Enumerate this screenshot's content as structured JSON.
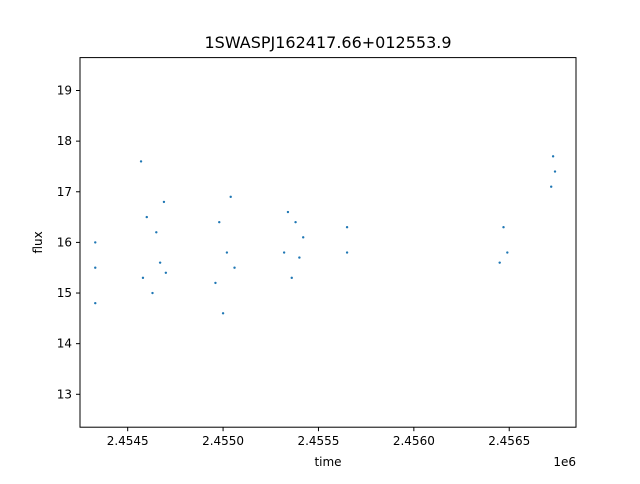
{
  "chart_data": {
    "type": "scatter",
    "title": "1SWASPJ162417.66+012553.9",
    "xlabel": "time",
    "ylabel": "flux",
    "x_offset_label": "1e6",
    "xlim": [
      2.45425,
      2.45685
    ],
    "ylim": [
      12.35,
      19.65
    ],
    "x_ticks": [
      2.4545,
      2.455,
      2.4555,
      2.456,
      2.4565
    ],
    "x_tick_labels": [
      "2.4545",
      "2.4550",
      "2.4555",
      "2.4560",
      "2.4565"
    ],
    "y_ticks": [
      13,
      14,
      15,
      16,
      17,
      18,
      19
    ],
    "y_tick_labels": [
      "13",
      "14",
      "15",
      "16",
      "17",
      "18",
      "19"
    ],
    "grid": false,
    "point_color": "#1f77b4",
    "series": [
      {
        "x": [
          2.45433,
          2.45433,
          2.45433,
          2.45457,
          2.45458,
          2.4546,
          2.45463,
          2.45465,
          2.45467,
          2.45469,
          2.4547,
          2.45496,
          2.45498,
          2.455,
          2.45502,
          2.45504,
          2.45506,
          2.45532,
          2.45534,
          2.45536,
          2.45538,
          2.4554,
          2.45542,
          2.45565,
          2.45565,
          2.45645,
          2.45647,
          2.45649,
          2.45672,
          2.45673,
          2.45674
        ],
        "y": [
          14.8,
          15.5,
          16.0,
          17.6,
          15.3,
          16.5,
          15.0,
          16.2,
          15.6,
          16.8,
          15.4,
          15.2,
          16.4,
          14.6,
          15.8,
          16.9,
          15.5,
          15.8,
          16.6,
          15.3,
          16.4,
          15.7,
          16.1,
          15.8,
          16.3,
          15.6,
          16.3,
          15.8,
          17.1,
          17.7,
          17.4
        ]
      }
    ]
  }
}
